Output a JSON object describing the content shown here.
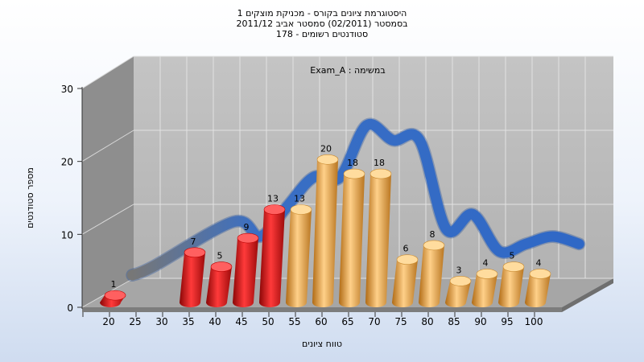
{
  "chart_data": {
    "type": "bar",
    "title_lines": [
      "היסטוגרמת ציונים בקורס - מכניקת מוצקים 1",
      "בסמסטר (02/2011) סמסטר אביב 2011/12",
      "סטודנטים רשומים - 178"
    ],
    "annotation": "Exam_A : במשימה",
    "xlabel": "טווח ציונים",
    "ylabel": "מספר סטודנטים",
    "ylim": [
      0,
      30
    ],
    "y_ticks": [
      "0",
      "10",
      "20",
      "30"
    ],
    "categories": [
      "20",
      "25",
      "30",
      "35",
      "40",
      "45",
      "50",
      "55",
      "60",
      "65",
      "70",
      "75",
      "80",
      "85",
      "90",
      "95",
      "100"
    ],
    "values": [
      1,
      null,
      null,
      7,
      5,
      9,
      13,
      13,
      20,
      18,
      18,
      6,
      8,
      3,
      4,
      5,
      4
    ],
    "bar_colors": {
      "failing": "#d81818",
      "passing": "#e8a23c"
    },
    "failing_categories": [
      "20",
      "35",
      "40",
      "45",
      "50"
    ],
    "curve_color": "#3a6fc4",
    "grid": true,
    "legend": "none"
  }
}
